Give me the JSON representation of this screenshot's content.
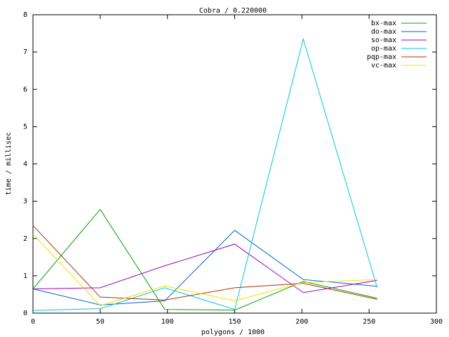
{
  "chart_data": {
    "type": "line",
    "title": "Cobra / 0.220000",
    "x_label": "polygons / 1000",
    "y_label": "time / millisec",
    "x": [
      0,
      50,
      98,
      150,
      201,
      256
    ],
    "xlim": [
      0,
      300
    ],
    "xticks": [
      0,
      50,
      100,
      150,
      200,
      250,
      300
    ],
    "ylim": [
      0,
      8
    ],
    "yticks": [
      0,
      1,
      2,
      3,
      4,
      5,
      6,
      7,
      8
    ],
    "legend": "top-right",
    "series": [
      {
        "name": "bx-max",
        "color": "#00a000",
        "values": [
          0.65,
          2.78,
          0.1,
          0.08,
          0.85,
          0.4
        ]
      },
      {
        "name": "do-max",
        "color": "#0060d0",
        "values": [
          0.65,
          0.22,
          0.33,
          2.22,
          0.9,
          0.72
        ]
      },
      {
        "name": "so-max",
        "color": "#a000c0",
        "values": [
          0.65,
          0.68,
          1.27,
          1.85,
          0.55,
          0.88
        ]
      },
      {
        "name": "op-max",
        "color": "#00c8d8",
        "values": [
          0.07,
          0.12,
          0.68,
          0.1,
          7.35,
          0.68
        ]
      },
      {
        "name": "pqp-max",
        "color": "#b03000",
        "values": [
          2.35,
          0.43,
          0.35,
          0.68,
          0.8,
          0.37
        ]
      },
      {
        "name": "vc-max",
        "color": "#f0e000",
        "values": [
          2.12,
          0.2,
          0.73,
          0.33,
          0.82,
          0.9
        ]
      }
    ]
  }
}
